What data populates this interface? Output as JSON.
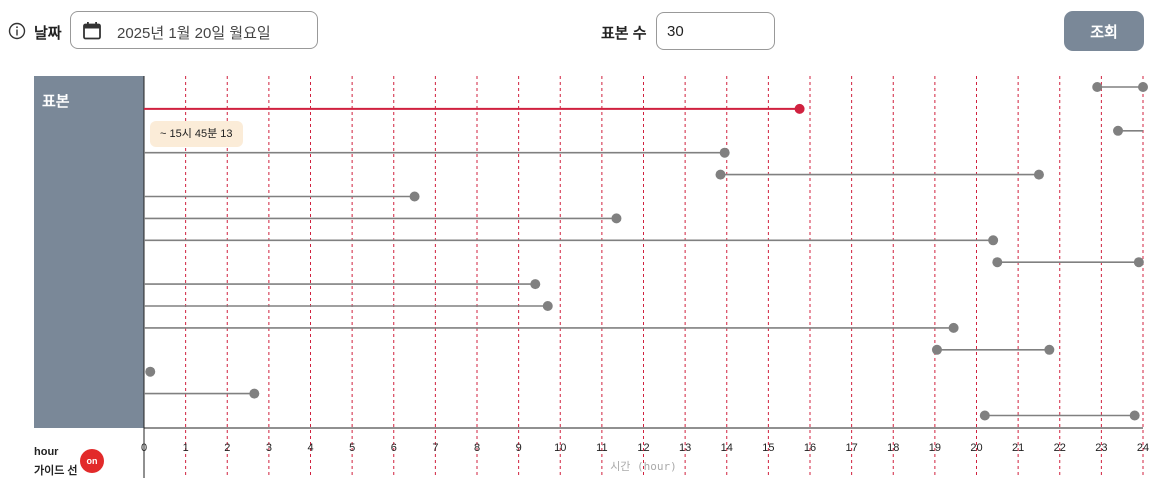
{
  "header": {
    "info_icon": "info-circle-icon",
    "date_label": "날짜",
    "calendar_icon": "calendar-icon",
    "date_value": "2025년 1월 20일 월요일",
    "samples_label": "표본 수",
    "samples_value": "30",
    "query_button": "조회"
  },
  "sample_panel": {
    "title": "표본"
  },
  "tooltip": "~ 15시 45분 13",
  "footer": {
    "hour_label": "hour",
    "guide_label": "가이드 선",
    "guide_toggle": "on"
  },
  "colors": {
    "panel": "#7a8898",
    "highlight": "#d0213f",
    "segment": "#808080",
    "guide": "#d0213f",
    "toggle": "#e22a2a"
  },
  "chart_data": {
    "type": "timeline",
    "xlabel": "시간 (hour)",
    "xlim": [
      0,
      24
    ],
    "x_ticks": [
      "0",
      "1",
      "2",
      "3",
      "4",
      "5",
      "6",
      "7",
      "8",
      "9",
      "10",
      "11",
      "12",
      "13",
      "14",
      "15",
      "16",
      "17",
      "18",
      "19",
      "20",
      "21",
      "22",
      "23",
      "24"
    ],
    "guide_lines": true,
    "rows": [
      {
        "start": 22.9,
        "end": 24.0,
        "start_marker": true,
        "end_marker": true
      },
      {
        "start": 0.0,
        "end": 15.75,
        "highlight": true,
        "start_marker": false,
        "end_marker": true
      },
      {
        "start": 23.4,
        "end": 24.0,
        "start_marker": true,
        "end_marker": false
      },
      {
        "start": 0.0,
        "end": 13.95,
        "start_marker": false,
        "end_marker": true
      },
      {
        "start": 13.85,
        "end": 21.5,
        "start_marker": true,
        "end_marker": true
      },
      {
        "start": 0.0,
        "end": 6.5,
        "start_marker": false,
        "end_marker": true
      },
      {
        "start": 0.0,
        "end": 11.35,
        "start_marker": false,
        "end_marker": true
      },
      {
        "start": 0.0,
        "end": 20.4,
        "start_marker": false,
        "end_marker": true
      },
      {
        "start": 20.5,
        "end": 23.9,
        "start_marker": true,
        "end_marker": true
      },
      {
        "start": 0.0,
        "end": 9.4,
        "start_marker": false,
        "end_marker": true
      },
      {
        "start": 0.0,
        "end": 9.7,
        "start_marker": false,
        "end_marker": true
      },
      {
        "start": 0.0,
        "end": 19.45,
        "start_marker": false,
        "end_marker": true
      },
      {
        "start": 19.05,
        "end": 21.75,
        "start_marker": true,
        "end_marker": true
      },
      {
        "start": 0.15,
        "end": 0.15,
        "start_marker": true,
        "end_marker": false
      },
      {
        "start": 0.0,
        "end": 2.65,
        "start_marker": false,
        "end_marker": true
      },
      {
        "start": 20.2,
        "end": 23.8,
        "start_marker": true,
        "end_marker": true
      }
    ]
  }
}
